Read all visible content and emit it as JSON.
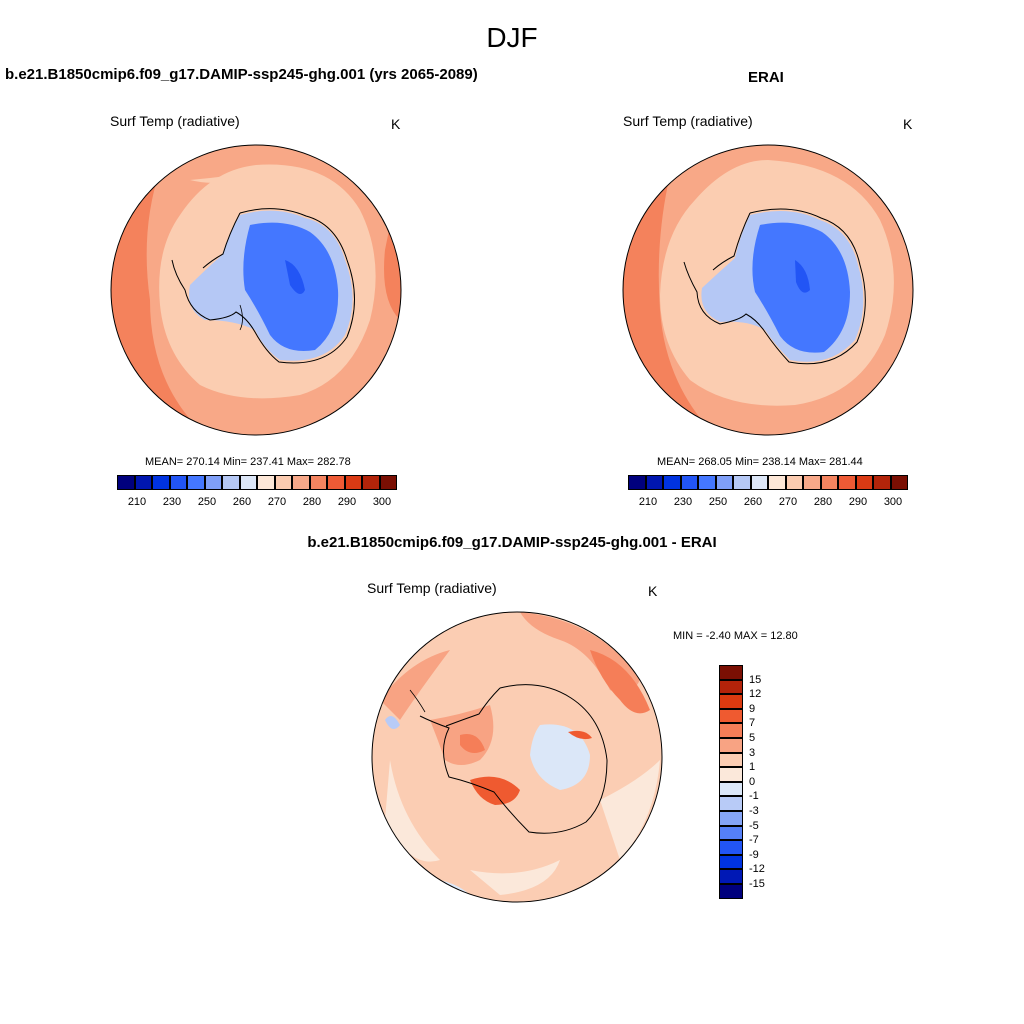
{
  "figure": {
    "title": "DJF"
  },
  "panels": {
    "model": {
      "title": "b.e21.B1850cmip6.f09_g17.DAMIP-ssp245-ghg.001 (yrs 2065-2089)",
      "variable": "Surf Temp (radiative)",
      "units": "K",
      "stats": "MEAN= 270.14  Min= 237.41  Max= 282.78"
    },
    "obs": {
      "title": "ERAI",
      "variable": "Surf Temp (radiative)",
      "units": "K",
      "stats": "MEAN= 268.05  Min= 238.14  Max= 281.44"
    },
    "diff": {
      "title": "b.e21.B1850cmip6.f09_g17.DAMIP-ssp245-ghg.001 - ERAI",
      "variable": "Surf Temp (radiative)",
      "units": "K",
      "stats": "MIN =  -2.40 MAX =  12.80"
    }
  },
  "colorbars": {
    "abs_colors": [
      "#00007d",
      "#0016b0",
      "#0033e0",
      "#2255f5",
      "#4477ff",
      "#7f9ff8",
      "#b5c8f5",
      "#dde7f8",
      "#fde7d7",
      "#fbcbb0",
      "#f7a889",
      "#f48460",
      "#ee5a35",
      "#da3a14",
      "#b2240a",
      "#7a0f03"
    ],
    "abs_ticks": [
      "210",
      "230",
      "250",
      "260",
      "270",
      "280",
      "290",
      "300"
    ],
    "diff_colors": [
      "#00007d",
      "#0018b5",
      "#0033e0",
      "#2255f5",
      "#5580f8",
      "#85a5f7",
      "#b8cbf7",
      "#dbe7f8",
      "#fbe8da",
      "#fbcdb3",
      "#f8a383",
      "#f57e58",
      "#ef5a30",
      "#db3a10",
      "#b3230a",
      "#7a0f03"
    ],
    "diff_ticks": [
      "-15",
      "-12",
      "-9",
      "-7",
      "-5",
      "-3",
      "-1",
      "0",
      "1",
      "3",
      "5",
      "7",
      "9",
      "12",
      "15"
    ]
  }
}
